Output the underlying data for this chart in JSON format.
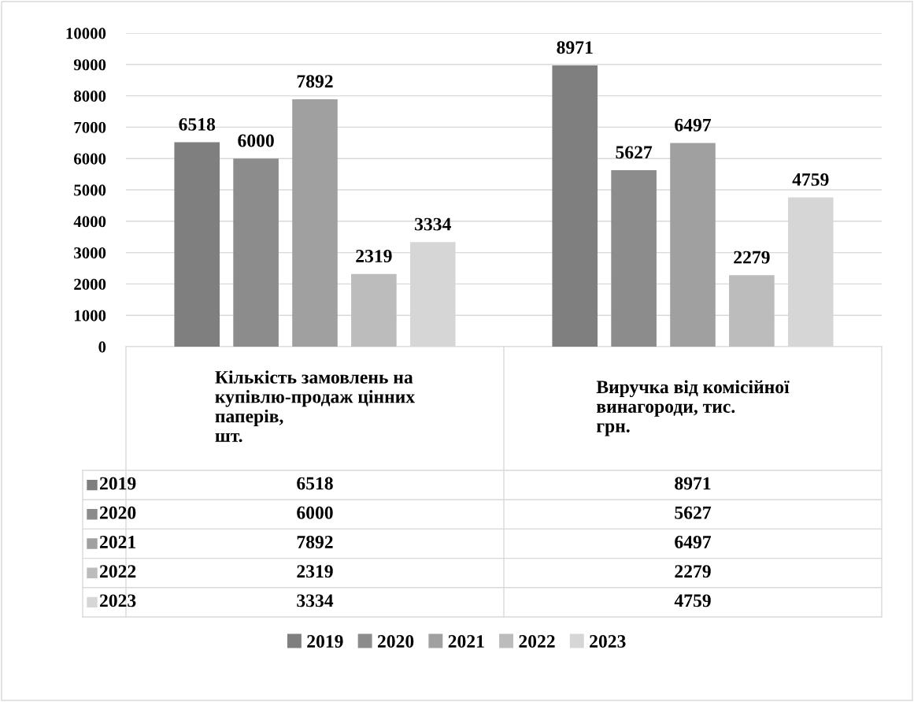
{
  "chart_data": {
    "type": "bar",
    "categories": [
      "Кількість замовлень на\nкупівлю-продаж цінних\nпаперів,\nшт.",
      "Виручка від комісійної\nвинагороди, тис.\nгрн."
    ],
    "series": [
      {
        "name": "2019",
        "color": "#7f7f7f",
        "values": [
          6518,
          8971
        ],
        "value_labels": [
          "6518",
          "8971"
        ]
      },
      {
        "name": "2020",
        "color": "#8c8c8c",
        "values": [
          6000,
          5627
        ],
        "value_labels": [
          "6000",
          "5627"
        ]
      },
      {
        "name": "2021",
        "color": "#a0a0a0",
        "values": [
          7892,
          6497
        ],
        "value_labels": [
          "7892",
          "6497"
        ]
      },
      {
        "name": "2022",
        "color": "#bcbcbc",
        "values": [
          2319,
          2279
        ],
        "value_labels": [
          "2319",
          "2279"
        ]
      },
      {
        "name": "2023",
        "color": "#d6d6d6",
        "values": [
          3334,
          4759
        ],
        "value_labels": [
          "3334",
          "4759"
        ]
      }
    ],
    "ylim": [
      0,
      10000
    ],
    "yticks": [
      0,
      1000,
      2000,
      3000,
      4000,
      5000,
      6000,
      7000,
      8000,
      9000,
      10000
    ],
    "annotations": [
      "6518",
      "8971",
      "6000",
      "5627",
      "7892",
      "6497",
      "2319",
      "2279",
      "3334",
      "4759"
    ],
    "grid": "y",
    "legend": "bottom"
  }
}
